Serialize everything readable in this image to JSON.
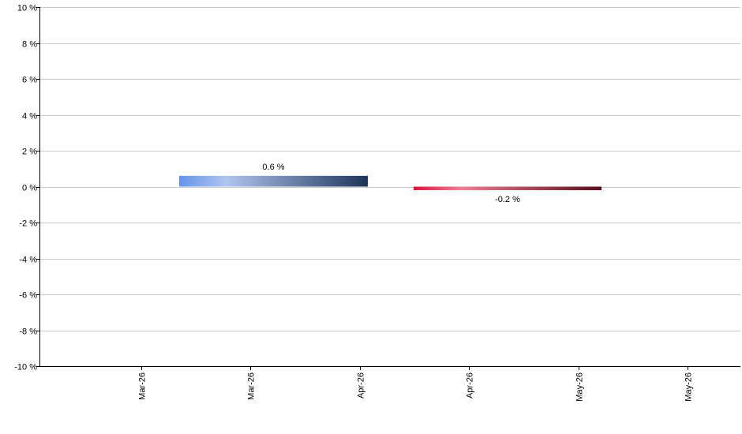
{
  "chart_data": {
    "type": "bar",
    "title": "",
    "xlabel": "",
    "ylabel": "",
    "ylim": [
      -10,
      10
    ],
    "y_ticks": [
      10,
      8,
      6,
      4,
      2,
      0,
      -2,
      -4,
      -6,
      -8,
      -10
    ],
    "y_tick_suffix": " %",
    "x_tick_labels": [
      "Mar-26",
      "Mar-26",
      "Apr-26",
      "Apr-26",
      "May-26",
      "May-26"
    ],
    "grid": true,
    "bars": [
      {
        "value": 0.6,
        "label": "0.6 %",
        "span": [
          "Mar-26",
          "Apr-26"
        ],
        "color_start": "#6495ED",
        "color_mid": "#B0C4F0",
        "color_end": "#1F3558"
      },
      {
        "value": -0.2,
        "label": "-0.2 %",
        "span": [
          "Apr-26",
          "May-26"
        ],
        "color_start": "#DC143C",
        "color_mid": "#EE7E93",
        "color_end": "#5A0E1C"
      }
    ],
    "colors": {
      "grid": "#C8C8C8",
      "axis": "#000000",
      "text": "#000000"
    }
  }
}
